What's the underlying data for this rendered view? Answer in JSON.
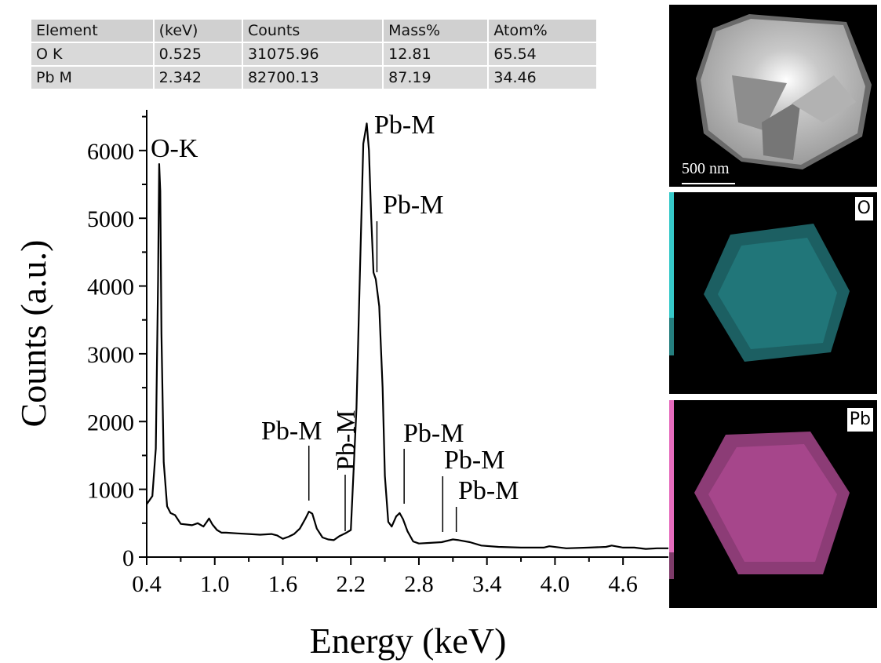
{
  "table": {
    "headers": [
      "Element",
      "(keV)",
      "Counts",
      "Mass%",
      "Atom%"
    ],
    "rows": [
      [
        "O  K",
        "0.525",
        "31075.96",
        "12.81",
        "65.54"
      ],
      [
        "Pb M",
        "2.342",
        "82700.13",
        "87.19",
        "34.46"
      ]
    ]
  },
  "chart_data": {
    "type": "line",
    "title": "",
    "xlabel": "Energy (keV)",
    "ylabel": "Counts (a.u.)",
    "xlim": [
      0.4,
      5.0
    ],
    "ylim": [
      0,
      6600
    ],
    "xticks": [
      "0.4",
      "1.0",
      "1.6",
      "2.2",
      "2.8",
      "3.4",
      "4.0",
      "4.6"
    ],
    "yticks": [
      "0",
      "1000",
      "2000",
      "3000",
      "4000",
      "5000",
      "6000"
    ],
    "grid": false,
    "series": [
      {
        "color": "#000000",
        "x": [
          0.4,
          0.45,
          0.48,
          0.5,
          0.51,
          0.52,
          0.53,
          0.55,
          0.58,
          0.61,
          0.65,
          0.7,
          0.75,
          0.8,
          0.85,
          0.9,
          0.93,
          0.95,
          0.98,
          1.02,
          1.06,
          1.1,
          1.2,
          1.3,
          1.4,
          1.5,
          1.55,
          1.6,
          1.65,
          1.7,
          1.75,
          1.8,
          1.83,
          1.86,
          1.9,
          1.95,
          2.0,
          2.05,
          2.1,
          2.15,
          2.2,
          2.25,
          2.28,
          2.31,
          2.34,
          2.36,
          2.38,
          2.4,
          2.42,
          2.45,
          2.48,
          2.5,
          2.53,
          2.56,
          2.6,
          2.63,
          2.66,
          2.7,
          2.75,
          2.8,
          2.9,
          3.0,
          3.1,
          3.15,
          3.25,
          3.35,
          3.5,
          3.7,
          3.9,
          3.95,
          4.1,
          4.3,
          4.45,
          4.5,
          4.6,
          4.7,
          4.8,
          4.9,
          5.0
        ],
        "y": [
          780,
          900,
          1600,
          4100,
          5800,
          5400,
          3300,
          1400,
          750,
          650,
          620,
          490,
          480,
          470,
          500,
          450,
          520,
          570,
          480,
          400,
          360,
          360,
          350,
          340,
          330,
          340,
          320,
          270,
          300,
          340,
          420,
          570,
          670,
          640,
          420,
          290,
          260,
          250,
          310,
          350,
          400,
          2200,
          4200,
          6100,
          6400,
          6000,
          5000,
          4200,
          4100,
          3700,
          2500,
          1200,
          520,
          450,
          600,
          650,
          560,
          380,
          230,
          200,
          210,
          220,
          260,
          250,
          220,
          170,
          150,
          140,
          140,
          160,
          130,
          140,
          150,
          170,
          140,
          140,
          120,
          130,
          130
        ]
      }
    ],
    "annotations": [
      {
        "text": "O-K",
        "x": 0.53,
        "y": 5800
      },
      {
        "text": "Pb-M",
        "x": 2.34,
        "y": 6400
      },
      {
        "text": "Pb-M",
        "x": 2.43,
        "y": 4200
      },
      {
        "text": "Pb-M",
        "x": 1.83,
        "y": 670
      },
      {
        "text": "Pb-M",
        "x": 2.15,
        "y": 400
      },
      {
        "text": "Pb-M",
        "x": 2.67,
        "y": 650
      },
      {
        "text": "Pb-M",
        "x": 3.01,
        "y": 260
      },
      {
        "text": "Pb-M",
        "x": 3.13,
        "y": 260
      }
    ]
  },
  "images": {
    "scale_bar": "500 nm",
    "map_o_label": "O",
    "map_pb_label": "Pb",
    "o_color": "#36c9c9",
    "pb_color": "#e56bbd"
  }
}
